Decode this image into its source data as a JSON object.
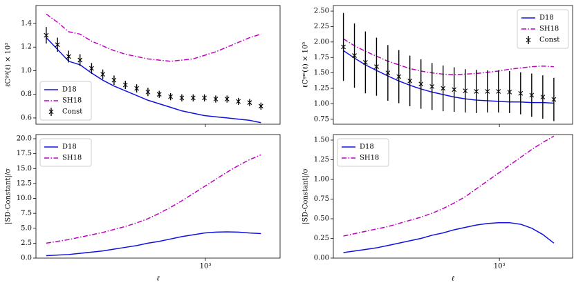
{
  "chart_data": [
    {
      "type": "line",
      "xscale": "log",
      "xlim": [
        100,
        2760
      ],
      "xticks": [
        1000
      ],
      "show_xticklabels": false,
      "ylabel": "ℓCᵍᵍ(ℓ) × 10³",
      "ylim": [
        0.547,
        1.552
      ],
      "yticks": [
        0.6,
        0.8,
        {
          "value": 1,
          "label": "1.0"
        },
        1.2,
        1.4
      ],
      "legend": "lower left",
      "x": [
        115,
        134,
        156,
        182,
        213,
        248,
        289,
        337,
        393,
        458,
        534,
        623,
        726,
        847,
        987,
        1151,
        1342,
        1565,
        1825,
        2128
      ],
      "series": [
        {
          "name": "D18",
          "color": "#1010e0",
          "linestyle": "-",
          "values": [
            1.28,
            1.18,
            1.08,
            1.05,
            0.98,
            0.92,
            0.87,
            0.83,
            0.79,
            0.75,
            0.72,
            0.69,
            0.66,
            0.64,
            0.62,
            0.61,
            0.6,
            0.59,
            0.58,
            0.56
          ]
        },
        {
          "name": "SH18",
          "color": "#c000c0",
          "linestyle": "-.",
          "values": [
            1.48,
            1.41,
            1.33,
            1.31,
            1.25,
            1.21,
            1.17,
            1.14,
            1.12,
            1.1,
            1.09,
            1.08,
            1.09,
            1.1,
            1.13,
            1.16,
            1.2,
            1.24,
            1.28,
            1.31
          ]
        },
        {
          "name": "Const",
          "color": "#000000",
          "marker": "x",
          "values": [
            1.3,
            1.22,
            1.12,
            1.09,
            1.02,
            0.97,
            0.92,
            0.88,
            0.85,
            0.82,
            0.8,
            0.78,
            0.77,
            0.77,
            0.77,
            0.76,
            0.76,
            0.74,
            0.73,
            0.7
          ],
          "errors": [
            0.07,
            0.06,
            0.05,
            0.05,
            0.045,
            0.04,
            0.04,
            0.035,
            0.035,
            0.035,
            0.03,
            0.03,
            0.03,
            0.03,
            0.03,
            0.03,
            0.03,
            0.03,
            0.03,
            0.03
          ]
        }
      ]
    },
    {
      "type": "line",
      "xscale": "log",
      "xlim": [
        100,
        2760
      ],
      "xticks": [
        1000
      ],
      "show_xticklabels": false,
      "ylabel": "ℓCᵍᵐ(ℓ) × 10⁵",
      "ylim": [
        0.67,
        2.59
      ],
      "yticks": [
        0.75,
        {
          "value": 1,
          "label": "1.00"
        },
        1.25,
        {
          "value": 1.5,
          "label": "1.50"
        },
        1.75,
        {
          "value": 2,
          "label": "2.00"
        },
        2.25,
        {
          "value": 2.5,
          "label": "2.50"
        }
      ],
      "legend": "upper right",
      "x": [
        115,
        134,
        156,
        182,
        213,
        248,
        289,
        337,
        393,
        458,
        534,
        623,
        726,
        847,
        987,
        1151,
        1342,
        1565,
        1825,
        2128
      ],
      "series": [
        {
          "name": "D18",
          "color": "#1010e0",
          "linestyle": "-",
          "values": [
            1.86,
            1.74,
            1.63,
            1.54,
            1.45,
            1.37,
            1.3,
            1.24,
            1.19,
            1.15,
            1.11,
            1.08,
            1.06,
            1.05,
            1.04,
            1.03,
            1.03,
            1.02,
            1.02,
            1.01
          ]
        },
        {
          "name": "SH18",
          "color": "#c000c0",
          "linestyle": "-.",
          "values": [
            2.05,
            1.94,
            1.85,
            1.77,
            1.69,
            1.63,
            1.57,
            1.53,
            1.5,
            1.48,
            1.47,
            1.48,
            1.49,
            1.51,
            1.53,
            1.56,
            1.58,
            1.6,
            1.61,
            1.6
          ]
        },
        {
          "name": "Const",
          "color": "#000000",
          "marker": "x",
          "values": [
            1.92,
            1.78,
            1.67,
            1.6,
            1.5,
            1.44,
            1.37,
            1.32,
            1.28,
            1.25,
            1.23,
            1.21,
            1.2,
            1.2,
            1.2,
            1.19,
            1.17,
            1.14,
            1.11,
            1.07
          ],
          "errors": [
            0.55,
            0.52,
            0.5,
            0.47,
            0.45,
            0.43,
            0.41,
            0.4,
            0.38,
            0.37,
            0.36,
            0.35,
            0.35,
            0.34,
            0.34,
            0.34,
            0.34,
            0.35,
            0.35,
            0.35
          ]
        }
      ]
    },
    {
      "type": "line",
      "xscale": "log",
      "xlim": [
        100,
        2760
      ],
      "xticks": [
        {
          "value": 1000,
          "label": "10³"
        }
      ],
      "show_xticklabels": true,
      "xlabel": "ℓ",
      "ylabel": "|SD-Constant|/σ",
      "ylim": [
        0,
        20.7
      ],
      "yticks": [
        {
          "value": 0,
          "label": "0.0"
        },
        2.5,
        {
          "value": 5,
          "label": "5.0"
        },
        7.5,
        {
          "value": 10,
          "label": "10.0"
        },
        12.5,
        {
          "value": 15,
          "label": "15.0"
        },
        17.5,
        {
          "value": 20,
          "label": "20.0"
        }
      ],
      "legend": "upper left",
      "x": [
        115,
        134,
        156,
        182,
        213,
        248,
        289,
        337,
        393,
        458,
        534,
        623,
        726,
        847,
        987,
        1151,
        1342,
        1565,
        1825,
        2128
      ],
      "series": [
        {
          "name": "D18",
          "color": "#1010e0",
          "linestyle": "-",
          "values": [
            0.4,
            0.5,
            0.6,
            0.8,
            1.0,
            1.2,
            1.5,
            1.8,
            2.1,
            2.5,
            2.8,
            3.2,
            3.6,
            3.9,
            4.2,
            4.35,
            4.4,
            4.35,
            4.2,
            4.1
          ]
        },
        {
          "name": "SH18",
          "color": "#c000c0",
          "linestyle": "-.",
          "values": [
            2.5,
            2.8,
            3.1,
            3.5,
            3.9,
            4.3,
            4.8,
            5.3,
            5.9,
            6.6,
            7.5,
            8.5,
            9.6,
            10.8,
            12.0,
            13.2,
            14.4,
            15.5,
            16.5,
            17.3
          ]
        }
      ]
    },
    {
      "type": "line",
      "xscale": "log",
      "xlim": [
        100,
        2760
      ],
      "xticks": [
        {
          "value": 1000,
          "label": "10³"
        }
      ],
      "show_xticklabels": true,
      "xlabel": "ℓ",
      "ylabel": "|SD-Constant|/σ",
      "ylim": [
        0,
        1.57
      ],
      "yticks": [
        {
          "value": 0,
          "label": "0.00"
        },
        0.25,
        {
          "value": 0.5,
          "label": "0.50"
        },
        0.75,
        {
          "value": 1,
          "label": "1.00"
        },
        1.25,
        {
          "value": 1.5,
          "label": "1.50"
        }
      ],
      "legend": "upper left",
      "x": [
        115,
        134,
        156,
        182,
        213,
        248,
        289,
        337,
        393,
        458,
        534,
        623,
        726,
        847,
        987,
        1151,
        1342,
        1565,
        1825,
        2128
      ],
      "series": [
        {
          "name": "D18",
          "color": "#1010e0",
          "linestyle": "-",
          "values": [
            0.07,
            0.09,
            0.11,
            0.13,
            0.16,
            0.19,
            0.22,
            0.25,
            0.29,
            0.32,
            0.36,
            0.39,
            0.42,
            0.44,
            0.45,
            0.45,
            0.43,
            0.38,
            0.3,
            0.19
          ]
        },
        {
          "name": "SH18",
          "color": "#c000c0",
          "linestyle": "-.",
          "values": [
            0.28,
            0.31,
            0.34,
            0.37,
            0.4,
            0.44,
            0.48,
            0.52,
            0.57,
            0.63,
            0.7,
            0.78,
            0.88,
            0.98,
            1.08,
            1.18,
            1.28,
            1.38,
            1.47,
            1.55
          ]
        }
      ]
    }
  ]
}
